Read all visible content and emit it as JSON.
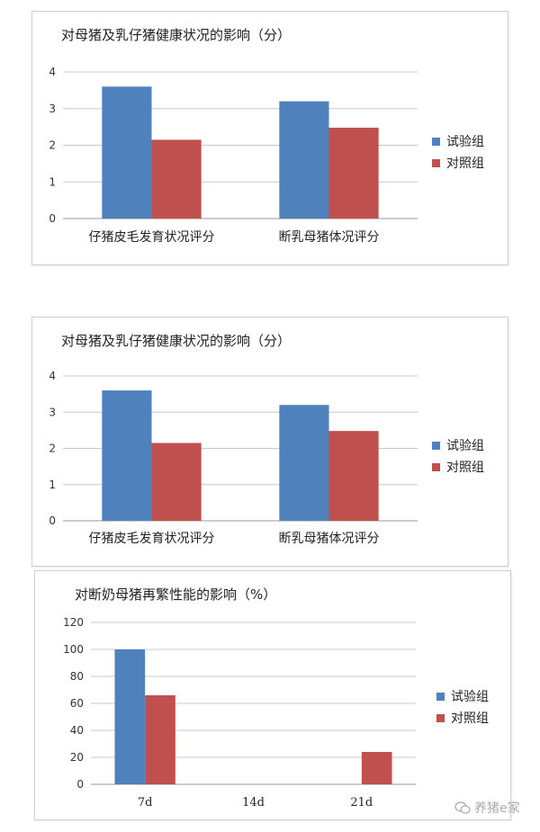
{
  "colors": {
    "series1": "#4f81bd",
    "series2": "#c0504d",
    "grid": "#c8c8c8",
    "axis": "#9a9a9a"
  },
  "legend": [
    "试验组",
    "对照组"
  ],
  "watermark": {
    "text": "养猪e家",
    "icon": "wechat-icon"
  },
  "chart_data": [
    {
      "type": "bar",
      "title": "对母猪及乳仔猪健康状况的影响（分）",
      "categories": [
        "仔猪皮毛发育状况评分",
        "断乳母猪体况评分"
      ],
      "series": [
        {
          "name": "试验组",
          "values": [
            3.6,
            3.2
          ]
        },
        {
          "name": "对照组",
          "values": [
            2.15,
            2.48
          ]
        }
      ],
      "ylim": [
        0,
        4
      ],
      "yticks": [
        0,
        1,
        2,
        3,
        4
      ],
      "grid": true,
      "legend_position": "right"
    },
    {
      "type": "bar",
      "title": "对母猪及乳仔猪健康状况的影响（分）",
      "categories": [
        "仔猪皮毛发育状况评分",
        "断乳母猪体况评分"
      ],
      "series": [
        {
          "name": "试验组",
          "values": [
            3.6,
            3.2
          ]
        },
        {
          "name": "对照组",
          "values": [
            2.15,
            2.48
          ]
        }
      ],
      "ylim": [
        0,
        4
      ],
      "yticks": [
        0,
        1,
        2,
        3,
        4
      ],
      "grid": true,
      "legend_position": "right"
    },
    {
      "type": "bar",
      "title": "对断奶母猪再繁性能的影响（%）",
      "categories": [
        "7d",
        "14d",
        "21d"
      ],
      "series": [
        {
          "name": "试验组",
          "values": [
            100,
            0,
            0
          ]
        },
        {
          "name": "对照组",
          "values": [
            66,
            0,
            24
          ]
        }
      ],
      "ylim": [
        0,
        120
      ],
      "yticks": [
        0,
        20,
        40,
        60,
        80,
        100,
        120
      ],
      "grid": true,
      "legend_position": "right"
    }
  ]
}
